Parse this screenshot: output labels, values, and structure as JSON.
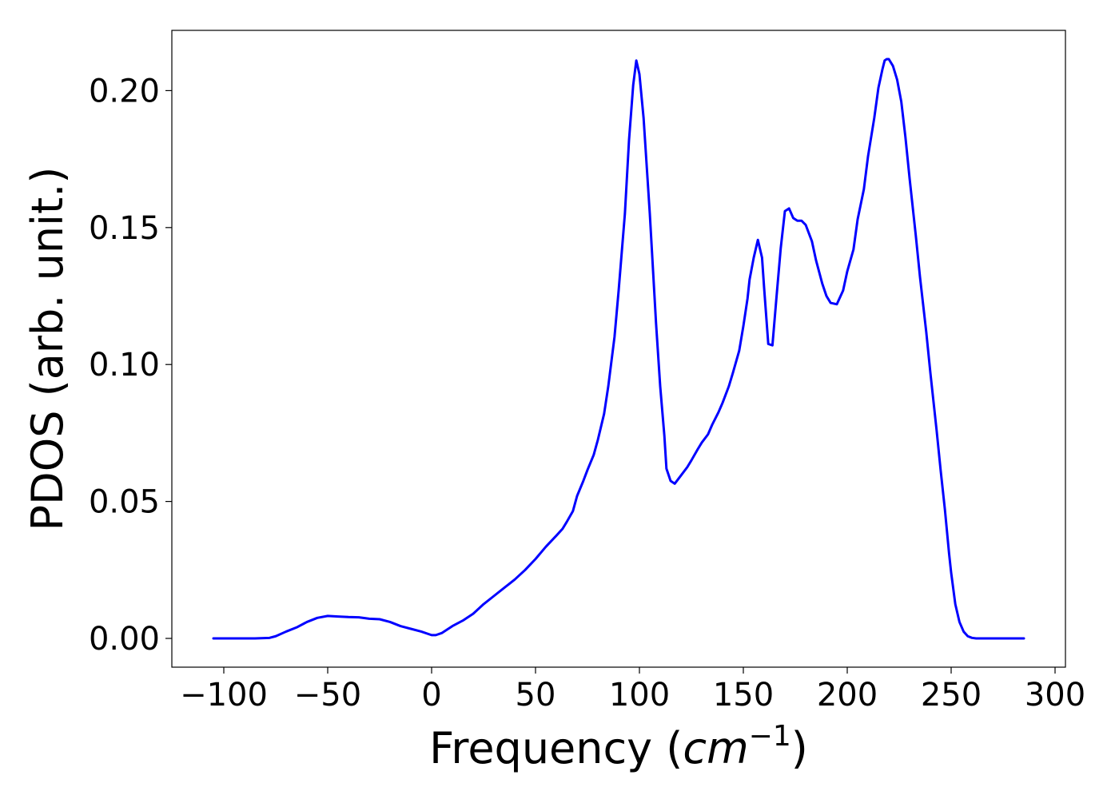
{
  "chart_data": {
    "type": "line",
    "title": "",
    "xlabel": "Frequency (",
    "xlabel_math_base": "cm",
    "xlabel_math_exp": "−1",
    "xlabel_close": ")",
    "ylabel": "PDOS (arb. unit.)",
    "xlim": [
      -125,
      305
    ],
    "ylim": [
      -0.0105,
      0.222
    ],
    "grid": false,
    "legend": "none",
    "line_color": "#0000ff",
    "x_ticks": [
      -100,
      -50,
      0,
      50,
      100,
      150,
      200,
      250,
      300
    ],
    "x_tick_labels": [
      "−100",
      "−50",
      "0",
      "50",
      "100",
      "150",
      "200",
      "250",
      "300"
    ],
    "y_ticks": [
      0.0,
      0.05,
      0.1,
      0.15,
      0.2
    ],
    "y_tick_labels": [
      "0.00",
      "0.05",
      "0.10",
      "0.15",
      "0.20"
    ],
    "series": [
      {
        "x": [
          -105,
          -95,
          -85,
          -78,
          -75,
          -70,
          -65,
          -60,
          -55,
          -50,
          -45,
          -40,
          -35,
          -30,
          -25,
          -20,
          -15,
          -10,
          -5,
          0,
          2,
          5,
          10,
          15,
          20,
          25,
          30,
          35,
          40,
          45,
          50,
          55,
          60,
          63,
          65,
          68,
          70,
          73,
          75,
          78,
          80,
          83,
          85,
          88,
          90,
          93,
          95,
          97,
          98.5,
          100,
          102,
          105,
          108,
          110,
          112,
          113,
          115,
          117,
          120,
          123,
          125,
          128,
          130,
          133,
          135,
          138,
          140,
          143,
          145,
          148,
          150,
          152,
          153,
          155,
          157,
          159,
          160,
          162,
          164,
          166,
          168,
          170,
          172,
          174,
          176,
          178,
          180,
          183,
          185,
          188,
          190,
          192,
          195,
          198,
          200,
          203,
          205,
          208,
          210,
          213,
          215,
          217,
          218,
          219,
          220,
          222,
          224,
          226,
          228,
          230,
          233,
          235,
          238,
          240,
          243,
          245,
          247,
          249,
          250,
          252,
          254,
          256,
          258,
          260,
          262,
          265,
          270,
          275,
          280,
          285
        ],
        "y": [
          0.0,
          0.0,
          0.0,
          0.0002,
          0.0008,
          0.0025,
          0.004,
          0.006,
          0.0075,
          0.0082,
          0.008,
          0.0078,
          0.0077,
          0.0072,
          0.007,
          0.006,
          0.0045,
          0.0035,
          0.0025,
          0.0012,
          0.0012,
          0.002,
          0.0045,
          0.0065,
          0.009,
          0.0125,
          0.0155,
          0.0185,
          0.0215,
          0.025,
          0.029,
          0.0335,
          0.0375,
          0.04,
          0.0425,
          0.0465,
          0.052,
          0.0575,
          0.0615,
          0.067,
          0.0725,
          0.082,
          0.092,
          0.11,
          0.127,
          0.155,
          0.182,
          0.202,
          0.211,
          0.206,
          0.19,
          0.155,
          0.115,
          0.092,
          0.074,
          0.062,
          0.0575,
          0.0565,
          0.0595,
          0.0625,
          0.065,
          0.069,
          0.0715,
          0.0745,
          0.078,
          0.0825,
          0.086,
          0.092,
          0.097,
          0.105,
          0.114,
          0.124,
          0.131,
          0.139,
          0.1455,
          0.139,
          0.128,
          0.1075,
          0.107,
          0.125,
          0.1425,
          0.156,
          0.157,
          0.1535,
          0.1525,
          0.1525,
          0.151,
          0.145,
          0.138,
          0.1295,
          0.125,
          0.1225,
          0.122,
          0.127,
          0.134,
          0.142,
          0.153,
          0.164,
          0.176,
          0.19,
          0.201,
          0.208,
          0.211,
          0.2115,
          0.2115,
          0.209,
          0.204,
          0.196,
          0.183,
          0.168,
          0.147,
          0.132,
          0.112,
          0.097,
          0.076,
          0.061,
          0.047,
          0.031,
          0.024,
          0.0125,
          0.006,
          0.0025,
          0.0008,
          0.0002,
          0.0,
          0.0,
          0.0,
          0.0,
          0.0,
          0.0
        ]
      }
    ]
  }
}
